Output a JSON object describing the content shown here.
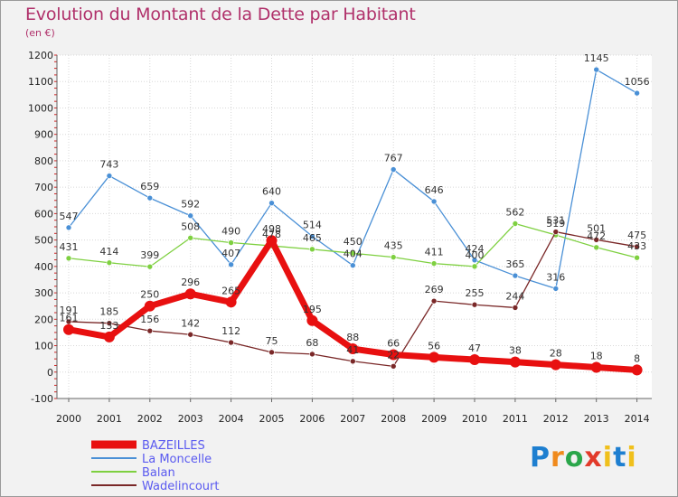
{
  "logo_text": "Proxiti",
  "chart_data": {
    "type": "line",
    "title": "Evolution du Montant de la Dette par Habitant",
    "subtitle": "(en €)",
    "xlabel": "",
    "ylabel": "",
    "ylim": [
      -100,
      1200
    ],
    "yticks": [
      -100,
      0,
      100,
      200,
      300,
      400,
      500,
      600,
      700,
      800,
      900,
      1000,
      1100,
      1200
    ],
    "grid": true,
    "legend_position": "bottom-left",
    "categories": [
      "2000",
      "2001",
      "2002",
      "2003",
      "2004",
      "2005",
      "2006",
      "2007",
      "2008",
      "2009",
      "2010",
      "2011",
      "2012",
      "2013",
      "2014"
    ],
    "series": [
      {
        "name": "BAZEILLES",
        "color": "#e81010",
        "values": [
          161,
          133,
          250,
          296,
          265,
          498,
          195,
          88,
          66,
          56,
          47,
          38,
          28,
          18,
          8
        ]
      },
      {
        "name": "La Moncelle",
        "color": "#4a90d6",
        "values": [
          547,
          743,
          659,
          592,
          407,
          640,
          514,
          404,
          767,
          646,
          424,
          365,
          316,
          1145,
          1056
        ]
      },
      {
        "name": "Balan",
        "color": "#7ed040",
        "values": [
          431,
          414,
          399,
          508,
          490,
          478,
          465,
          450,
          435,
          411,
          400,
          562,
          519,
          472,
          433
        ]
      },
      {
        "name": "Wadelincourt",
        "color": "#7a2828",
        "values": [
          191,
          185,
          156,
          142,
          112,
          75,
          68,
          41,
          22,
          269,
          255,
          244,
          531,
          501,
          475
        ]
      }
    ]
  }
}
